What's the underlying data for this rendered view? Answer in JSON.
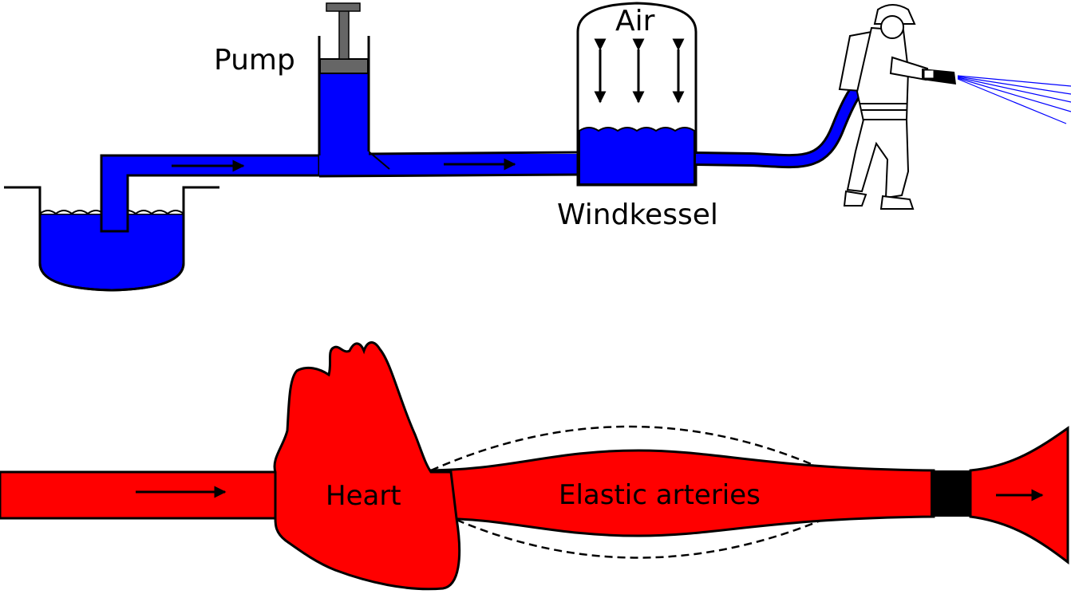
{
  "diagram": {
    "top": {
      "pump_label": "Pump",
      "air_label": "Air",
      "windkessel_label": "Windkessel",
      "water_color": "#0000ff"
    },
    "bottom": {
      "heart_label": "Heart",
      "arteries_label": "Elastic arteries",
      "blood_color": "#ff0000"
    }
  }
}
